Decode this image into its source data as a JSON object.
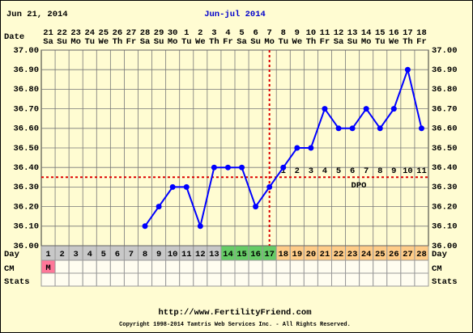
{
  "chart_data": {
    "type": "line",
    "date_label": "Jun 21, 2014",
    "title": "Jun-jul 2014",
    "row_labels": {
      "date": "Date",
      "day": "Day",
      "cm": "CM",
      "stats": "Stats"
    },
    "dates": [
      "21",
      "22",
      "23",
      "24",
      "25",
      "26",
      "27",
      "28",
      "29",
      "30",
      "1",
      "2",
      "3",
      "4",
      "5",
      "6",
      "7",
      "8",
      "9",
      "10",
      "11",
      "12",
      "13",
      "14",
      "15",
      "16",
      "17",
      "18"
    ],
    "weekdays": [
      "Sa",
      "Su",
      "Mo",
      "Tu",
      "We",
      "Th",
      "Fr",
      "Sa",
      "Su",
      "Mo",
      "Tu",
      "We",
      "Th",
      "Fr",
      "Sa",
      "Su",
      "Mo",
      "Tu",
      "We",
      "Th",
      "Fr",
      "Sa",
      "Su",
      "Mo",
      "Tu",
      "We",
      "Th",
      "Fr"
    ],
    "categories": [
      "1",
      "2",
      "3",
      "4",
      "5",
      "6",
      "7",
      "8",
      "9",
      "10",
      "11",
      "12",
      "13",
      "14",
      "15",
      "16",
      "17",
      "18",
      "19",
      "20",
      "21",
      "22",
      "23",
      "24",
      "25",
      "26",
      "27",
      "28"
    ],
    "day_colors": [
      "#c8c8c8",
      "#c8c8c8",
      "#c8c8c8",
      "#c8c8c8",
      "#c8c8c8",
      "#c8c8c8",
      "#c8c8c8",
      "#c8c8c8",
      "#c8c8c8",
      "#c8c8c8",
      "#c8c8c8",
      "#c8c8c8",
      "#c8c8c8",
      "#66cc66",
      "#66cc66",
      "#66cc66",
      "#66cc66",
      "#ffcc88",
      "#ffcc88",
      "#ffcc88",
      "#ffcc88",
      "#ffcc88",
      "#ffcc88",
      "#ffcc88",
      "#ffcc88",
      "#ffcc88",
      "#ffcc88",
      "#ffcc88"
    ],
    "cm": [
      "M",
      null,
      null,
      null,
      null,
      null,
      null,
      null,
      null,
      null,
      null,
      null,
      null,
      null,
      null,
      null,
      null,
      null,
      null,
      null,
      null,
      null,
      null,
      null,
      null,
      null,
      null,
      null
    ],
    "cm_color": "#ff7799",
    "values": [
      null,
      null,
      null,
      null,
      null,
      null,
      null,
      36.1,
      36.2,
      36.3,
      36.3,
      36.1,
      36.4,
      36.4,
      36.4,
      36.2,
      36.3,
      36.4,
      36.5,
      36.5,
      36.7,
      36.6,
      36.6,
      36.7,
      36.6,
      36.7,
      36.9,
      36.6
    ],
    "color": "#0000ff",
    "coverline": 36.35,
    "ovulation_day": "17",
    "marker_color": "#dd0000",
    "dpo": [
      null,
      null,
      null,
      null,
      null,
      null,
      null,
      null,
      null,
      null,
      null,
      null,
      null,
      null,
      null,
      null,
      null,
      1,
      2,
      3,
      4,
      5,
      6,
      7,
      8,
      9,
      10,
      11
    ],
    "dpo_label": "DPO",
    "ylim": [
      36.0,
      37.0
    ],
    "yticks": [
      {
        "value": 36.0,
        "label": "36.00"
      },
      {
        "value": 36.1,
        "label": "36.10"
      },
      {
        "value": 36.2,
        "label": "36.20"
      },
      {
        "value": 36.3,
        "label": "36.30"
      },
      {
        "value": 36.4,
        "label": "36.40"
      },
      {
        "value": 36.5,
        "label": "36.50"
      },
      {
        "value": 36.6,
        "label": "36.60"
      },
      {
        "value": 36.7,
        "label": "36.70"
      },
      {
        "value": 36.8,
        "label": "36.80"
      },
      {
        "value": 36.9,
        "label": "36.90"
      },
      {
        "value": 37.0,
        "label": "37.00"
      }
    ],
    "grid": true,
    "url": "http://www.FertilityFriend.com",
    "copyright": "Copyright 1998-2014 Tamtris Web Services Inc. - All Rights Reserved."
  }
}
